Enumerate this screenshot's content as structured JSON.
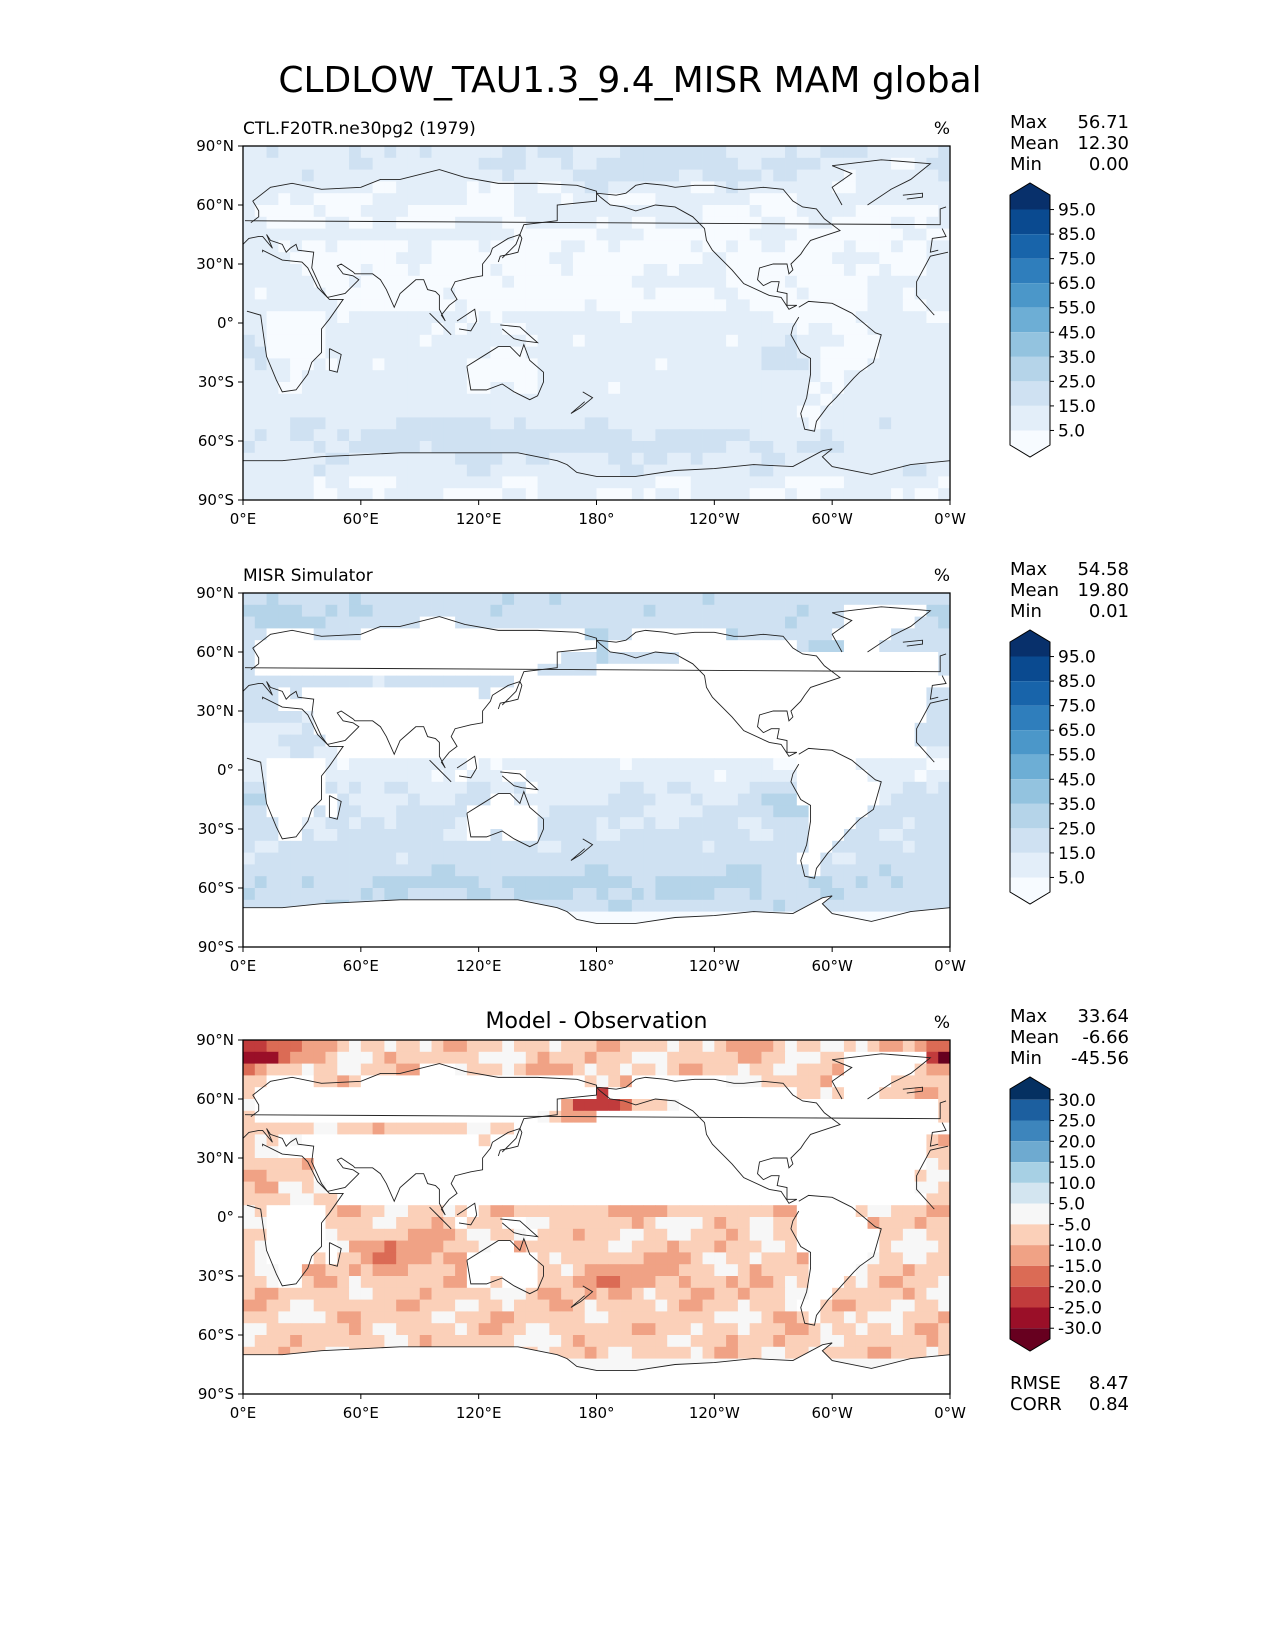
{
  "title": "CLDLOW_TAU1.3_9.4_MISR MAM global",
  "chart_data": [
    {
      "type": "heatmap",
      "panel": "test",
      "subtitle": "CTL.F20TR.ne30pg2 (1979)",
      "units": "%",
      "stats": [
        {
          "label": "Max",
          "value": "56.71"
        },
        {
          "label": "Mean",
          "value": "12.30"
        },
        {
          "label": "Min",
          "value": "0.00"
        }
      ],
      "x_ticks": [
        "0°E",
        "60°E",
        "120°E",
        "180°",
        "120°W",
        "60°W",
        "0°W"
      ],
      "y_ticks": [
        "90°N",
        "60°N",
        "30°N",
        "0°",
        "30°S",
        "60°S",
        "90°S"
      ],
      "xlim": [
        0,
        360
      ],
      "ylim": [
        -90,
        90
      ],
      "colormap": "Blues",
      "colorbar_ticks": [
        "95.0",
        "85.0",
        "75.0",
        "65.0",
        "55.0",
        "45.0",
        "35.0",
        "25.0",
        "15.0",
        "5.0"
      ],
      "colors": [
        "#f7fbff",
        "#e3eef9",
        "#cfe1f2",
        "#b5d4e9",
        "#93c3df",
        "#6daed5",
        "#4b97c9",
        "#2f7ebc",
        "#1864aa",
        "#0a4a90",
        "#08306b"
      ]
    },
    {
      "type": "heatmap",
      "panel": "reference",
      "subtitle": "MISR Simulator",
      "units": "%",
      "stats": [
        {
          "label": "Max",
          "value": "54.58"
        },
        {
          "label": "Mean",
          "value": "19.80"
        },
        {
          "label": "Min",
          "value": "0.01"
        }
      ],
      "x_ticks": [
        "0°E",
        "60°E",
        "120°E",
        "180°",
        "120°W",
        "60°W",
        "0°W"
      ],
      "y_ticks": [
        "90°N",
        "60°N",
        "30°N",
        "0°",
        "30°S",
        "60°S",
        "90°S"
      ],
      "xlim": [
        0,
        360
      ],
      "ylim": [
        -90,
        90
      ],
      "colormap": "Blues",
      "colorbar_ticks": [
        "95.0",
        "85.0",
        "75.0",
        "65.0",
        "55.0",
        "45.0",
        "35.0",
        "25.0",
        "15.0",
        "5.0"
      ],
      "colors": [
        "#f7fbff",
        "#e3eef9",
        "#cfe1f2",
        "#b5d4e9",
        "#93c3df",
        "#6daed5",
        "#4b97c9",
        "#2f7ebc",
        "#1864aa",
        "#0a4a90",
        "#08306b"
      ]
    },
    {
      "type": "heatmap",
      "panel": "difference",
      "subtitle": "Model - Observation",
      "units": "%",
      "stats": [
        {
          "label": "Max",
          "value": "33.64"
        },
        {
          "label": "Mean",
          "value": "-6.66"
        },
        {
          "label": "Min",
          "value": "-45.56"
        }
      ],
      "metrics": [
        {
          "label": "RMSE",
          "value": "8.47"
        },
        {
          "label": "CORR",
          "value": "0.84"
        }
      ],
      "x_ticks": [
        "0°E",
        "60°E",
        "120°E",
        "180°",
        "120°W",
        "60°W",
        "0°W"
      ],
      "y_ticks": [
        "90°N",
        "60°N",
        "30°N",
        "0°",
        "30°S",
        "60°S",
        "90°S"
      ],
      "xlim": [
        0,
        360
      ],
      "ylim": [
        -90,
        90
      ],
      "colormap": "RdBu_r",
      "colorbar_ticks": [
        "30.0",
        "25.0",
        "20.0",
        "15.0",
        "10.0",
        "5.0",
        "-5.0",
        "-10.0",
        "-15.0",
        "-20.0",
        "-25.0",
        "-30.0"
      ],
      "colors": [
        "#67001f",
        "#9a0f28",
        "#c13b3c",
        "#db6b55",
        "#f0a285",
        "#fbd0b9",
        "#f7f7f7",
        "#d3e5f0",
        "#a7d0e4",
        "#6eaad0",
        "#3d85bc",
        "#1c5f9f",
        "#053061"
      ]
    }
  ]
}
